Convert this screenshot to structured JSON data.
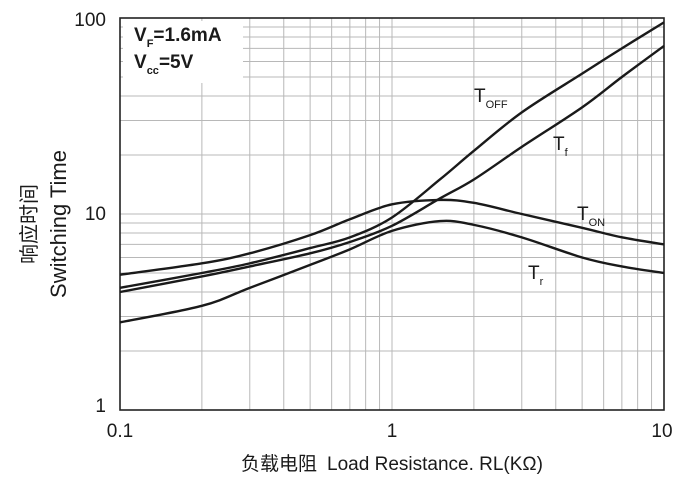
{
  "chart_data": {
    "type": "line",
    "xscale": "log",
    "yscale": "log",
    "xlim": [
      0.1,
      10
    ],
    "ylim": [
      1,
      100
    ],
    "grid": true,
    "x_ticks": [
      "0.1",
      "1",
      "10"
    ],
    "y_ticks": [
      "1",
      "10",
      "100"
    ],
    "xlabel_cn": "负载电阻",
    "xlabel": "Load Resistance. RL(KΩ)",
    "ylabel_cn": "响应时间",
    "ylabel": "Switching Time",
    "conditions": [
      {
        "main": "V",
        "sub": "F",
        "rest": "=1.6mA"
      },
      {
        "main": "V",
        "sub": "cc",
        "rest": "=5V"
      }
    ],
    "series": [
      {
        "name": "T_OFF",
        "label_main": "T",
        "label_sub": "OFF",
        "x": [
          0.1,
          0.2,
          0.3,
          0.5,
          0.7,
          1,
          1.5,
          2,
          3,
          5,
          7,
          10
        ],
        "y": [
          4.2,
          5.0,
          5.6,
          6.7,
          7.6,
          9.6,
          15,
          21,
          33,
          52,
          70,
          95
        ]
      },
      {
        "name": "T_f",
        "label_main": "T",
        "label_sub": "f",
        "x": [
          0.1,
          0.2,
          0.3,
          0.5,
          0.7,
          1,
          1.5,
          2,
          3,
          5,
          7,
          10
        ],
        "y": [
          4.0,
          4.8,
          5.4,
          6.3,
          7.2,
          8.7,
          12,
          15,
          22,
          35,
          50,
          72
        ]
      },
      {
        "name": "T_ON",
        "label_main": "T",
        "label_sub": "ON",
        "x": [
          0.1,
          0.2,
          0.3,
          0.5,
          0.7,
          1,
          1.5,
          2,
          3,
          5,
          7,
          10
        ],
        "y": [
          4.9,
          5.6,
          6.3,
          7.8,
          9.4,
          11.2,
          11.8,
          11.4,
          10,
          8.5,
          7.6,
          7.0
        ]
      },
      {
        "name": "T_r",
        "label_main": "T",
        "label_sub": "r",
        "x": [
          0.1,
          0.2,
          0.3,
          0.5,
          0.7,
          1,
          1.5,
          2,
          3,
          5,
          7,
          10
        ],
        "y": [
          2.8,
          3.4,
          4.2,
          5.5,
          6.6,
          8.2,
          9.2,
          8.8,
          7.6,
          6.0,
          5.4,
          5.0
        ]
      }
    ]
  }
}
